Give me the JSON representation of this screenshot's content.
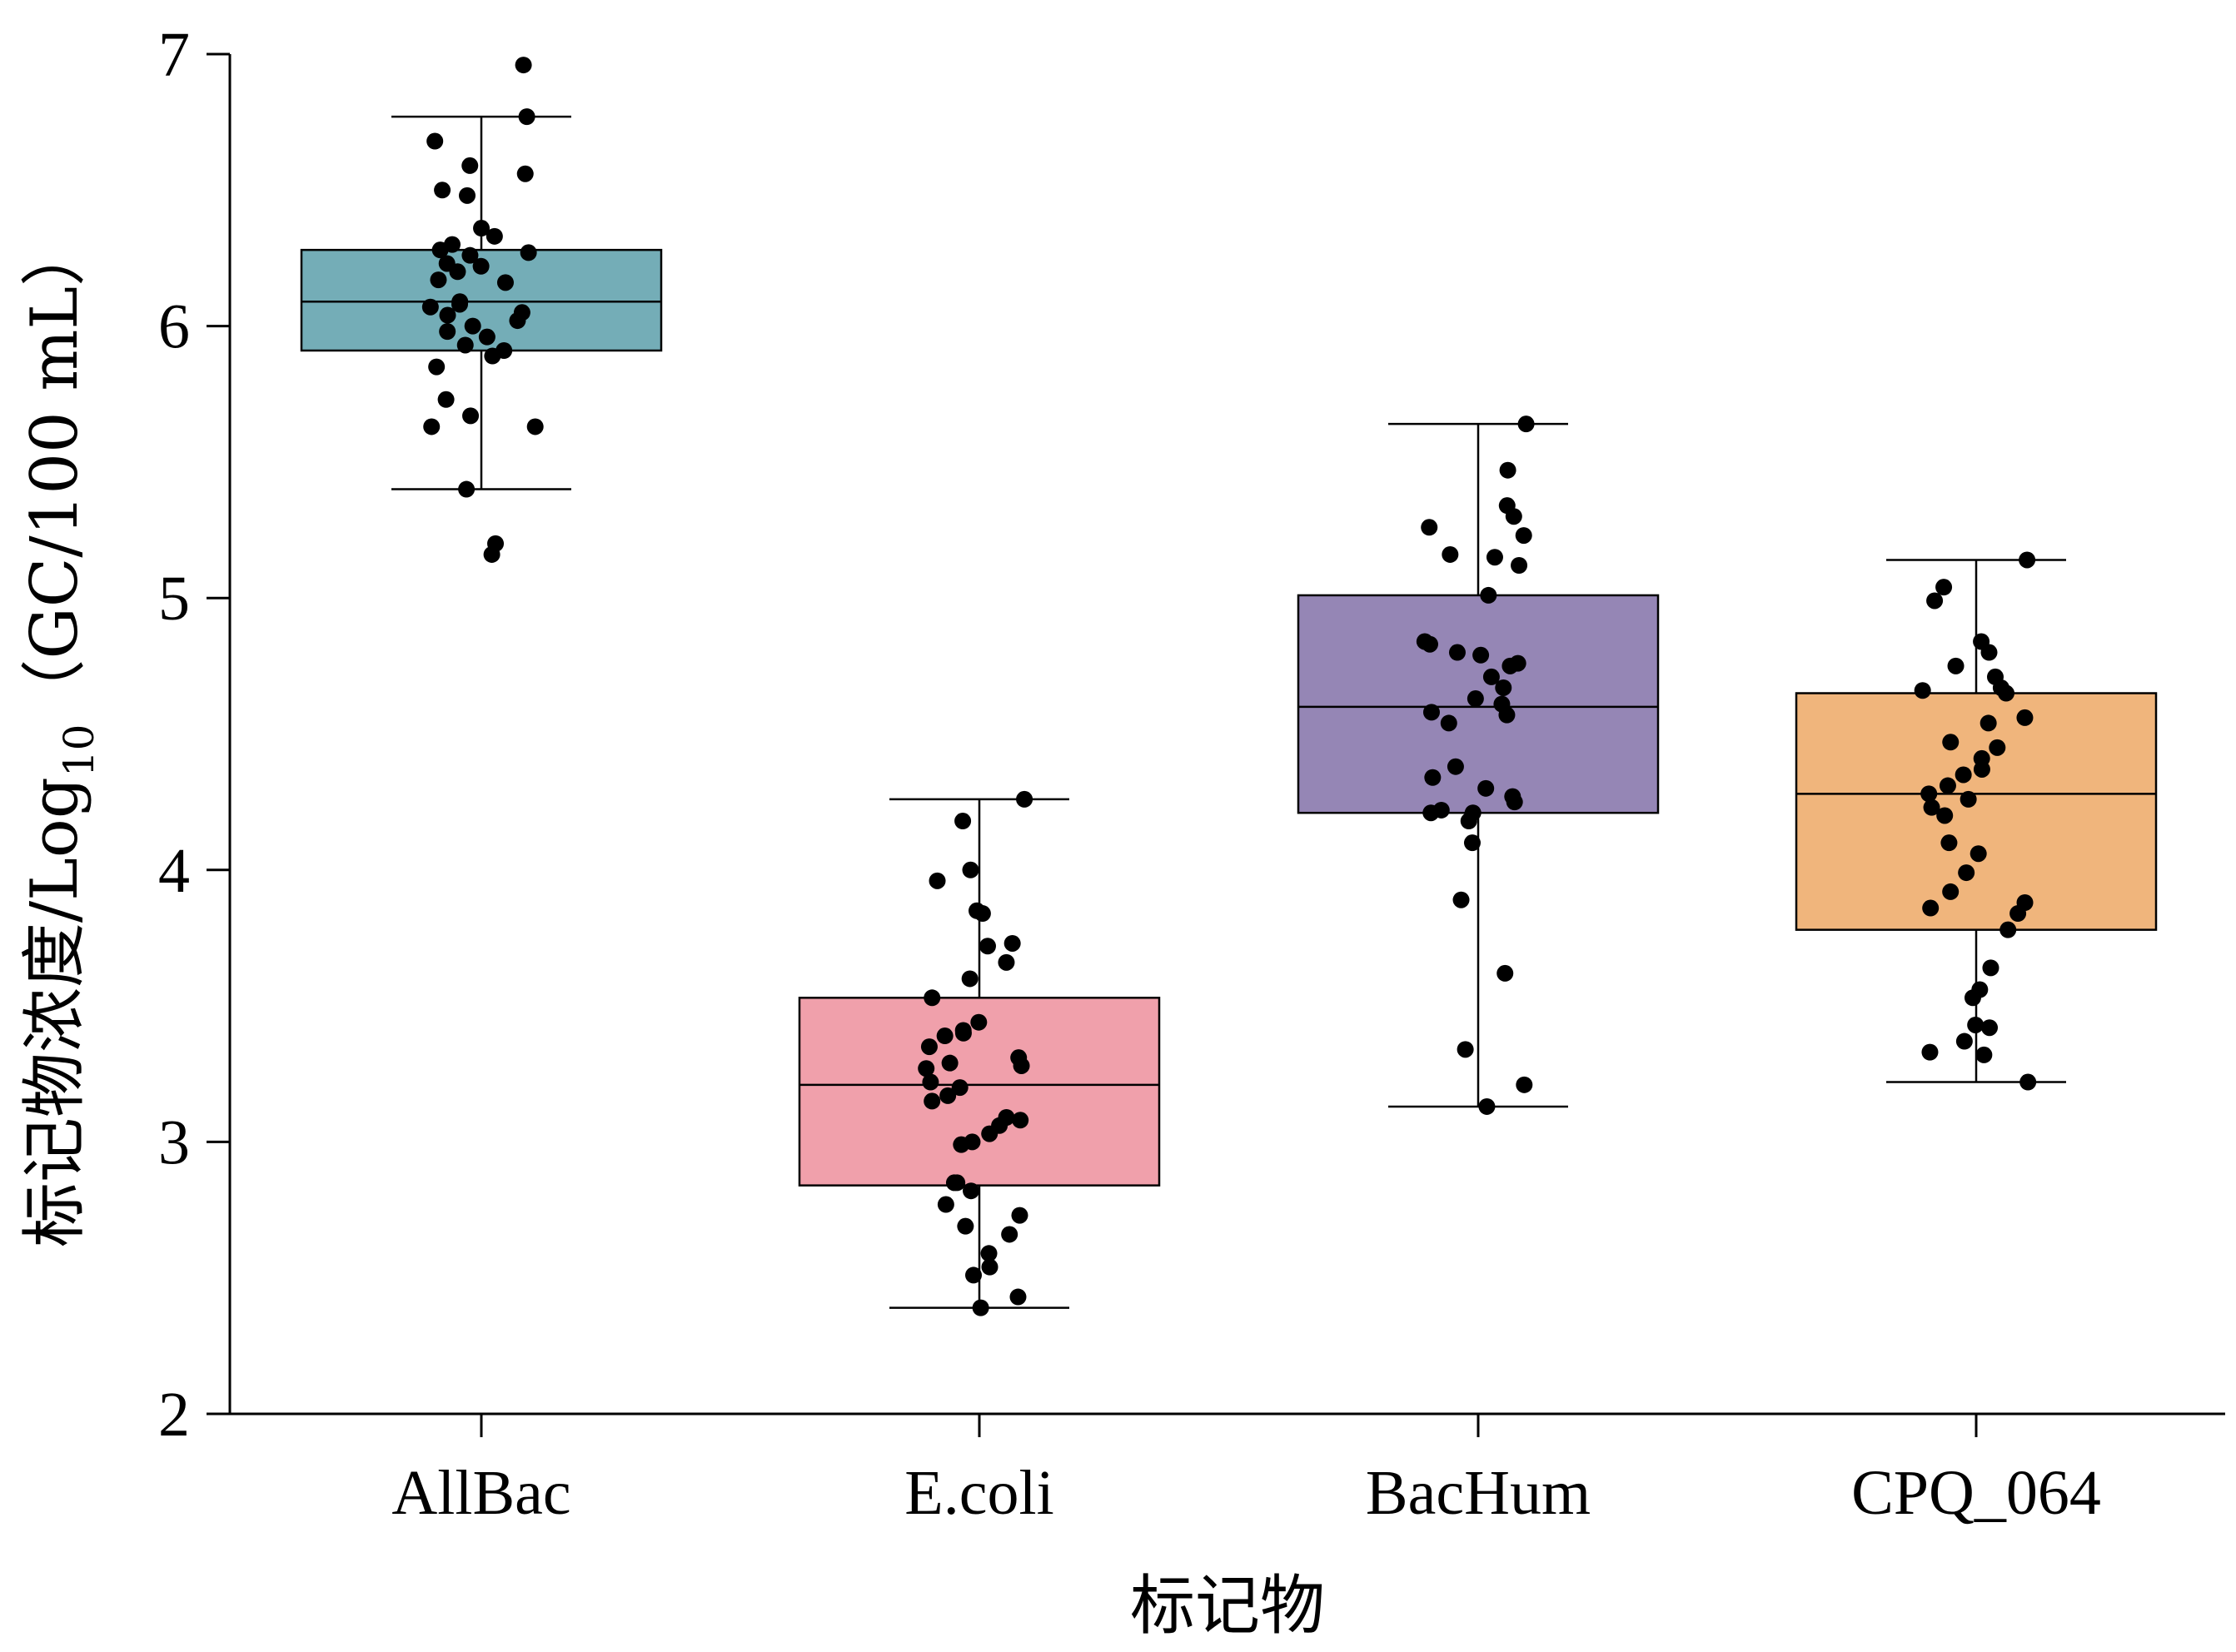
{
  "chart_data": {
    "type": "box",
    "xlabel": "标记物",
    "ylabel_main": "标记物浓度/Log",
    "ylabel_sub": "10",
    "ylabel_unit": "（GC/100 mL）",
    "ylim": [
      2,
      7
    ],
    "yticks": [
      "2",
      "3",
      "4",
      "5",
      "6",
      "7"
    ],
    "grid": false,
    "legend": "none",
    "categories": [
      "AllBac",
      "E.coli",
      "BacHum",
      "CPQ_064"
    ],
    "boxes": [
      {
        "name": "AllBac",
        "color": "#74adb7",
        "q1": 5.91,
        "median": 6.09,
        "q3": 6.28,
        "whisker_low": 5.4,
        "whisker_high": 6.77,
        "points": [
          6.96,
          6.77,
          6.68,
          6.59,
          6.56,
          6.5,
          6.48,
          6.36,
          6.33,
          6.3,
          6.28,
          6.27,
          6.26,
          6.23,
          6.22,
          6.2,
          6.17,
          6.16,
          6.09,
          6.08,
          6.07,
          6.05,
          6.04,
          6.02,
          6.0,
          5.98,
          5.96,
          5.93,
          5.91,
          5.89,
          5.85,
          5.73,
          5.67,
          5.63,
          5.63,
          5.4,
          5.2,
          5.16
        ]
      },
      {
        "name": "E.coli",
        "color": "#f0a0ab",
        "q1": 2.84,
        "median": 3.21,
        "q3": 3.53,
        "whisker_low": 2.39,
        "whisker_high": 4.26,
        "points": [
          4.26,
          4.18,
          4.0,
          3.96,
          3.85,
          3.84,
          3.73,
          3.72,
          3.66,
          3.6,
          3.53,
          3.44,
          3.41,
          3.4,
          3.39,
          3.35,
          3.31,
          3.29,
          3.28,
          3.27,
          3.22,
          3.2,
          3.17,
          3.15,
          3.09,
          3.08,
          3.06,
          3.03,
          3.0,
          2.99,
          2.85,
          2.85,
          2.82,
          2.77,
          2.73,
          2.69,
          2.66,
          2.59,
          2.54,
          2.51,
          2.43,
          2.39
        ]
      },
      {
        "name": "BacHum",
        "color": "#9586b5",
        "q1": 4.21,
        "median": 4.6,
        "q3": 5.01,
        "whisker_low": 3.13,
        "whisker_high": 5.64,
        "points": [
          5.64,
          5.47,
          5.34,
          5.3,
          5.26,
          5.23,
          5.16,
          5.15,
          5.12,
          5.01,
          4.84,
          4.83,
          4.8,
          4.79,
          4.76,
          4.75,
          4.71,
          4.67,
          4.63,
          4.61,
          4.58,
          4.57,
          4.54,
          4.38,
          4.34,
          4.3,
          4.27,
          4.25,
          4.22,
          4.21,
          4.21,
          4.18,
          4.1,
          3.89,
          3.62,
          3.34,
          3.21,
          3.13
        ]
      },
      {
        "name": "CPQ_064",
        "color": "#f0b57c",
        "q1": 3.78,
        "median": 4.28,
        "q3": 4.65,
        "whisker_low": 3.22,
        "whisker_high": 5.14,
        "points": [
          5.14,
          5.04,
          4.99,
          4.84,
          4.8,
          4.75,
          4.71,
          4.67,
          4.66,
          4.65,
          4.56,
          4.54,
          4.47,
          4.45,
          4.41,
          4.37,
          4.35,
          4.31,
          4.28,
          4.26,
          4.23,
          4.2,
          4.1,
          4.06,
          3.99,
          3.92,
          3.88,
          3.86,
          3.84,
          3.78,
          3.64,
          3.56,
          3.53,
          3.43,
          3.42,
          3.37,
          3.33,
          3.32,
          3.22
        ]
      }
    ]
  }
}
